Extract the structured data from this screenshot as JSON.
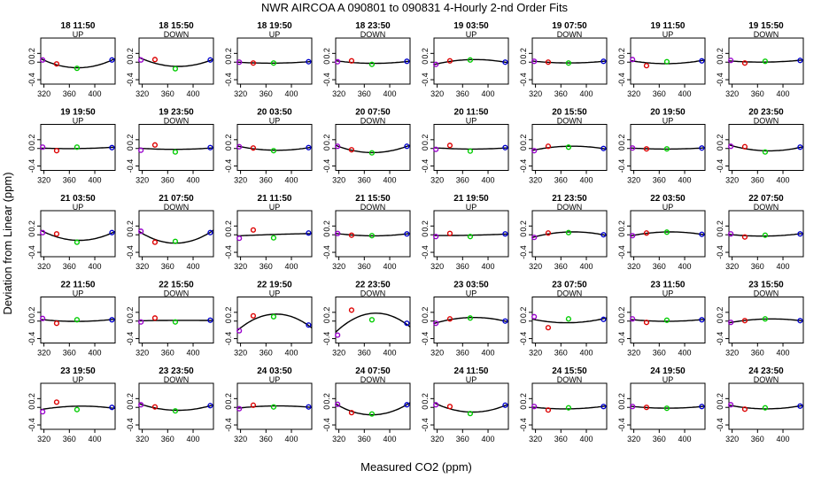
{
  "chart_data": {
    "type": "scatter",
    "title": "NWR   AIRCOA A   090801 to 090831   4-Hourly 2-nd Order Fits",
    "xlabel": "Measured CO2 (ppm)",
    "ylabel": "Deviation from Linear (ppm)",
    "xlim": [
      315,
      432
    ],
    "ylim": [
      -0.5,
      0.55
    ],
    "xticks": [
      320,
      360,
      400
    ],
    "yticks": [
      -0.4,
      0,
      0.2
    ],
    "xtick_labels": [
      "320",
      "360",
      "400"
    ],
    "ytick_labels": [
      "-0.4",
      "0",
      "0.2"
    ],
    "standard_x": [
      318,
      340,
      372,
      427
    ],
    "point_colors": [
      "#9900cc",
      "#dd0000",
      "#00cc00",
      "#0000cc"
    ],
    "curve_color": "#000000",
    "grid": false,
    "layout": "5 rows x 8 columns",
    "panels": [
      {
        "title": "18 11:50",
        "dir": "UP",
        "pts": [
          0.05,
          -0.04,
          -0.14,
          0.05
        ]
      },
      {
        "title": "18 15:50",
        "dir": "DOWN",
        "pts": [
          0.05,
          0.06,
          -0.15,
          0.05
        ]
      },
      {
        "title": "18 19:50",
        "dir": "UP",
        "pts": [
          0.0,
          -0.02,
          -0.02,
          0.01
        ]
      },
      {
        "title": "18 23:50",
        "dir": "DOWN",
        "pts": [
          0.01,
          0.03,
          -0.05,
          0.02
        ]
      },
      {
        "title": "19 03:50",
        "dir": "UP",
        "pts": [
          -0.05,
          0.03,
          0.05,
          0.0
        ]
      },
      {
        "title": "19 07:50",
        "dir": "DOWN",
        "pts": [
          0.02,
          0.0,
          -0.02,
          0.02
        ]
      },
      {
        "title": "19 11:50",
        "dir": "UP",
        "pts": [
          0.06,
          -0.08,
          0.01,
          0.03
        ]
      },
      {
        "title": "19 15:50",
        "dir": "DOWN",
        "pts": [
          0.04,
          -0.02,
          0.02,
          0.04
        ]
      },
      {
        "title": "19 19:50",
        "dir": "UP",
        "pts": [
          0.03,
          -0.05,
          0.03,
          0.02
        ]
      },
      {
        "title": "19 23:50",
        "dir": "DOWN",
        "pts": [
          -0.04,
          0.08,
          -0.08,
          0.02
        ]
      },
      {
        "title": "20 03:50",
        "dir": "UP",
        "pts": [
          0.04,
          0.01,
          -0.05,
          0.02
        ]
      },
      {
        "title": "20 07:50",
        "dir": "DOWN",
        "pts": [
          0.05,
          -0.03,
          -0.1,
          0.05
        ]
      },
      {
        "title": "20 11:50",
        "dir": "UP",
        "pts": [
          -0.02,
          0.07,
          -0.06,
          0.02
        ]
      },
      {
        "title": "20 15:50",
        "dir": "DOWN",
        "pts": [
          -0.05,
          0.05,
          0.03,
          0.0
        ]
      },
      {
        "title": "20 19:50",
        "dir": "UP",
        "pts": [
          0.01,
          -0.01,
          -0.01,
          0.01
        ]
      },
      {
        "title": "20 23:50",
        "dir": "DOWN",
        "pts": [
          0.05,
          0.04,
          -0.08,
          0.03
        ]
      },
      {
        "title": "21 03:50",
        "dir": "UP",
        "pts": [
          0.05,
          0.02,
          -0.17,
          0.05
        ]
      },
      {
        "title": "21 07:50",
        "dir": "DOWN",
        "pts": [
          0.08,
          -0.17,
          -0.15,
          0.05
        ]
      },
      {
        "title": "21 11:50",
        "dir": "UP",
        "pts": [
          -0.08,
          0.11,
          -0.07,
          0.04
        ]
      },
      {
        "title": "21 15:50",
        "dir": "DOWN",
        "pts": [
          0.03,
          -0.01,
          -0.02,
          0.02
        ]
      },
      {
        "title": "21 19:50",
        "dir": "UP",
        "pts": [
          -0.04,
          0.03,
          -0.04,
          0.02
        ]
      },
      {
        "title": "21 23:50",
        "dir": "DOWN",
        "pts": [
          -0.06,
          0.04,
          0.05,
          0.0
        ]
      },
      {
        "title": "22 03:50",
        "dir": "UP",
        "pts": [
          -0.02,
          0.04,
          0.06,
          0.01
        ]
      },
      {
        "title": "22 07:50",
        "dir": "DOWN",
        "pts": [
          0.02,
          -0.05,
          -0.01,
          0.02
        ]
      },
      {
        "title": "22 11:50",
        "dir": "UP",
        "pts": [
          0.06,
          -0.05,
          0.03,
          0.03
        ]
      },
      {
        "title": "22 15:50",
        "dir": "DOWN",
        "pts": [
          -0.02,
          0.07,
          -0.02,
          0.02
        ]
      },
      {
        "title": "22 19:50",
        "dir": "UP",
        "pts": [
          -0.22,
          0.12,
          0.1,
          -0.09
        ]
      },
      {
        "title": "22 23:50",
        "dir": "DOWN",
        "pts": [
          -0.32,
          0.25,
          0.03,
          -0.05
        ]
      },
      {
        "title": "23 03:50",
        "dir": "UP",
        "pts": [
          -0.05,
          0.05,
          0.07,
          0.0
        ]
      },
      {
        "title": "23 07:50",
        "dir": "DOWN",
        "pts": [
          0.1,
          -0.15,
          0.05,
          0.04
        ]
      },
      {
        "title": "23 11:50",
        "dir": "UP",
        "pts": [
          0.05,
          -0.03,
          0.02,
          0.03
        ]
      },
      {
        "title": "23 15:50",
        "dir": "DOWN",
        "pts": [
          -0.03,
          0.01,
          0.05,
          0.01
        ]
      },
      {
        "title": "23 19:50",
        "dir": "UP",
        "pts": [
          -0.1,
          0.12,
          -0.05,
          0.0
        ]
      },
      {
        "title": "23 23:50",
        "dir": "DOWN",
        "pts": [
          0.06,
          0.01,
          -0.08,
          0.04
        ]
      },
      {
        "title": "24 03:50",
        "dir": "UP",
        "pts": [
          -0.03,
          0.05,
          0.01,
          0.01
        ]
      },
      {
        "title": "24 07:50",
        "dir": "DOWN",
        "pts": [
          0.07,
          -0.12,
          -0.15,
          0.06
        ]
      },
      {
        "title": "24 11:50",
        "dir": "UP",
        "pts": [
          0.06,
          0.02,
          -0.14,
          0.05
        ]
      },
      {
        "title": "24 15:50",
        "dir": "DOWN",
        "pts": [
          0.02,
          -0.06,
          -0.01,
          0.02
        ]
      },
      {
        "title": "24 19:50",
        "dir": "UP",
        "pts": [
          0.02,
          0.0,
          -0.02,
          0.02
        ]
      },
      {
        "title": "24 23:50",
        "dir": "DOWN",
        "pts": [
          0.06,
          -0.04,
          -0.01,
          0.03
        ]
      }
    ]
  }
}
